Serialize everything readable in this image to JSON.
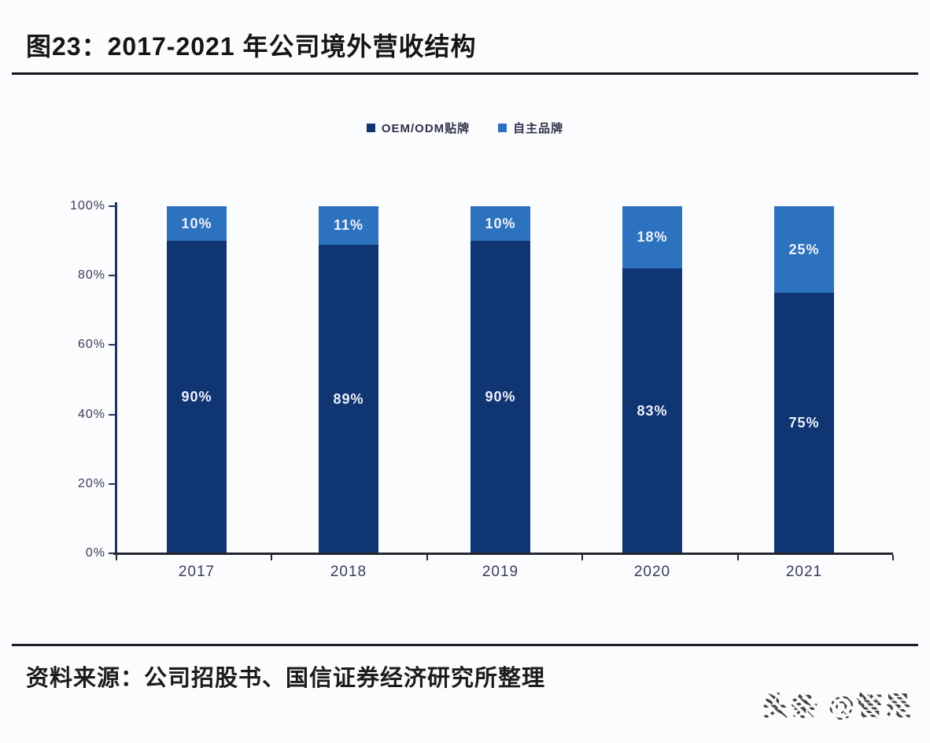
{
  "page": {
    "background": "#fbfcfe"
  },
  "figure": {
    "title": "图23：2017-2021 年公司境外营收结构",
    "source": "资料来源：公司招股书、国信证券经济研究所整理",
    "watermark": "头条 @管是"
  },
  "chart_data": {
    "type": "bar",
    "stacked": true,
    "percent_stacked": true,
    "title": "2017-2021 年公司境外营收结构",
    "categories": [
      "2017",
      "2018",
      "2019",
      "2020",
      "2021"
    ],
    "series": [
      {
        "name": "OEM/ODM贴牌",
        "color": "#0f3572",
        "values": [
          90,
          89,
          90,
          83,
          75
        ],
        "labels": [
          "90%",
          "89%",
          "90%",
          "83%",
          "75%"
        ]
      },
      {
        "name": "自主品牌",
        "color": "#2d72be",
        "values": [
          10,
          11,
          10,
          18,
          25
        ],
        "labels": [
          "10%",
          "11%",
          "10%",
          "18%",
          "25%"
        ]
      }
    ],
    "xlabel": "",
    "ylabel": "",
    "ylim": [
      0,
      100
    ],
    "yticks": [
      "0%",
      "20%",
      "40%",
      "60%",
      "80%",
      "100%"
    ],
    "grid": false,
    "legend_position": "top",
    "label_color": "#eef0fa"
  }
}
